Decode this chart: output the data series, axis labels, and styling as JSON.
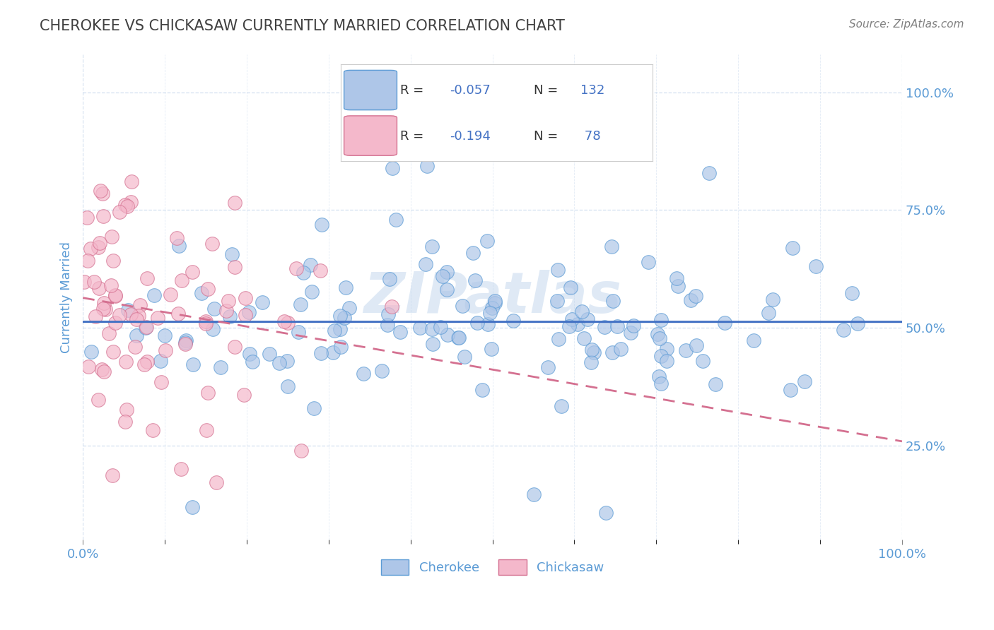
{
  "title": "CHEROKEE VS CHICKASAW CURRENTLY MARRIED CORRELATION CHART",
  "source": "Source: ZipAtlas.com",
  "ylabel": "Currently Married",
  "watermark": "ZIPatlas",
  "xlim": [
    0.0,
    1.0
  ],
  "ylim": [
    0.05,
    1.08
  ],
  "yticks": [
    0.25,
    0.5,
    0.75,
    1.0
  ],
  "ytick_labels": [
    "25.0%",
    "50.0%",
    "75.0%",
    "100.0%"
  ],
  "cherokee_color": "#aec6e8",
  "cherokee_edge": "#5b9bd5",
  "chickasaw_color": "#f4b8cb",
  "chickasaw_edge": "#d47090",
  "trendline_cherokee_color": "#4472c4",
  "trendline_chickasaw_color": "#d47090",
  "title_color": "#404040",
  "axis_label_color": "#5b9bd5",
  "grid_color": "#c8d8ec",
  "background_color": "#ffffff",
  "cherokee_R": -0.057,
  "cherokee_N": 132,
  "chickasaw_R": -0.194,
  "chickasaw_N": 78,
  "legend_text_color": "#4472c4",
  "legend_label_color": "#333333"
}
